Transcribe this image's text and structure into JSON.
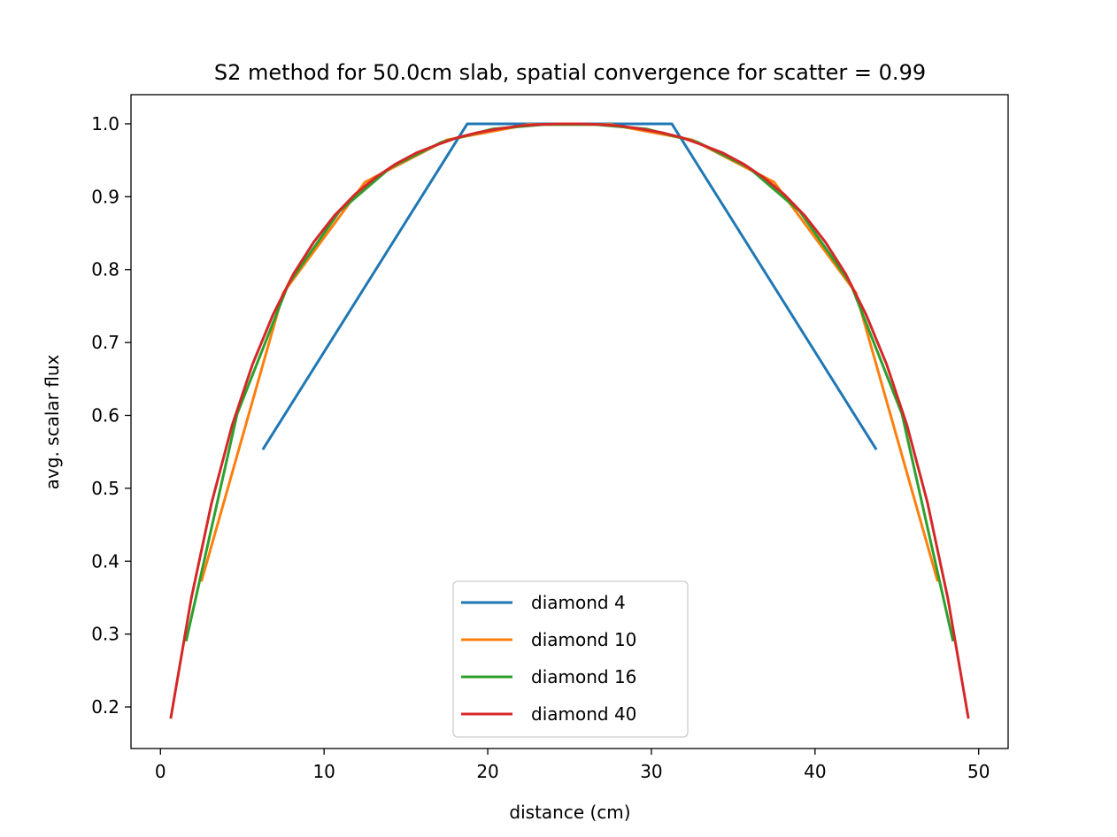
{
  "chart_data": {
    "type": "line",
    "title": "S2 method for 50.0cm slab, spatial convergence for scatter = 0.99",
    "xlabel": "distance (cm)",
    "ylabel": "avg. scalar flux",
    "xlim": [
      -1.8,
      51.8
    ],
    "ylim": [
      0.143,
      1.04
    ],
    "xticks": [
      0,
      10,
      20,
      30,
      40,
      50
    ],
    "yticks": [
      0.2,
      0.3,
      0.4,
      0.5,
      0.6,
      0.7,
      0.8,
      0.9,
      1.0
    ],
    "xtick_labels": [
      "0",
      "10",
      "20",
      "30",
      "40",
      "50"
    ],
    "ytick_labels": [
      "0.2",
      "0.3",
      "0.4",
      "0.5",
      "0.6",
      "0.7",
      "0.8",
      "0.9",
      "1.0"
    ],
    "grid": false,
    "legend_position": "lower-center",
    "series": [
      {
        "name": "diamond 4",
        "color": "#1f77b4",
        "x": [
          6.25,
          18.75,
          31.25,
          43.75
        ],
        "y": [
          0.553,
          1.0,
          1.0,
          0.553
        ]
      },
      {
        "name": "diamond 10",
        "color": "#ff7f0e",
        "x": [
          2.5,
          7.5,
          12.5,
          17.5,
          22.5,
          27.5,
          32.5,
          37.5,
          42.5,
          47.5
        ],
        "y": [
          0.372,
          0.768,
          0.92,
          0.978,
          0.999,
          0.999,
          0.978,
          0.92,
          0.768,
          0.372
        ]
      },
      {
        "name": "diamond 16",
        "color": "#2ca02c",
        "x": [
          1.5625,
          4.6875,
          7.8125,
          10.9375,
          14.0625,
          17.1875,
          20.3125,
          23.4375,
          26.5625,
          29.6875,
          32.8125,
          35.9375,
          39.0625,
          42.1875,
          45.3125,
          48.4375
        ],
        "y": [
          0.29,
          0.602,
          0.78,
          0.88,
          0.94,
          0.975,
          0.993,
          0.999,
          0.999,
          0.993,
          0.975,
          0.94,
          0.88,
          0.78,
          0.602,
          0.29
        ]
      },
      {
        "name": "diamond 40",
        "color": "#d62728",
        "x": [
          0.625,
          1.875,
          3.125,
          4.375,
          5.625,
          6.875,
          8.125,
          9.375,
          10.625,
          11.875,
          13.125,
          14.375,
          15.625,
          16.875,
          18.125,
          19.375,
          20.625,
          21.875,
          23.125,
          24.375,
          25.625,
          26.875,
          28.125,
          29.375,
          30.625,
          31.875,
          33.125,
          34.375,
          35.625,
          36.875,
          38.125,
          39.375,
          40.625,
          41.875,
          43.125,
          44.375,
          45.625,
          46.875,
          48.125,
          49.375
        ],
        "y": [
          0.184,
          0.348,
          0.48,
          0.586,
          0.67,
          0.738,
          0.794,
          0.838,
          0.874,
          0.903,
          0.926,
          0.945,
          0.96,
          0.971,
          0.981,
          0.988,
          0.993,
          0.997,
          0.999,
          1.0,
          1.0,
          0.999,
          0.997,
          0.993,
          0.988,
          0.981,
          0.971,
          0.96,
          0.945,
          0.926,
          0.903,
          0.874,
          0.838,
          0.794,
          0.738,
          0.67,
          0.586,
          0.48,
          0.348,
          0.184
        ]
      }
    ]
  }
}
